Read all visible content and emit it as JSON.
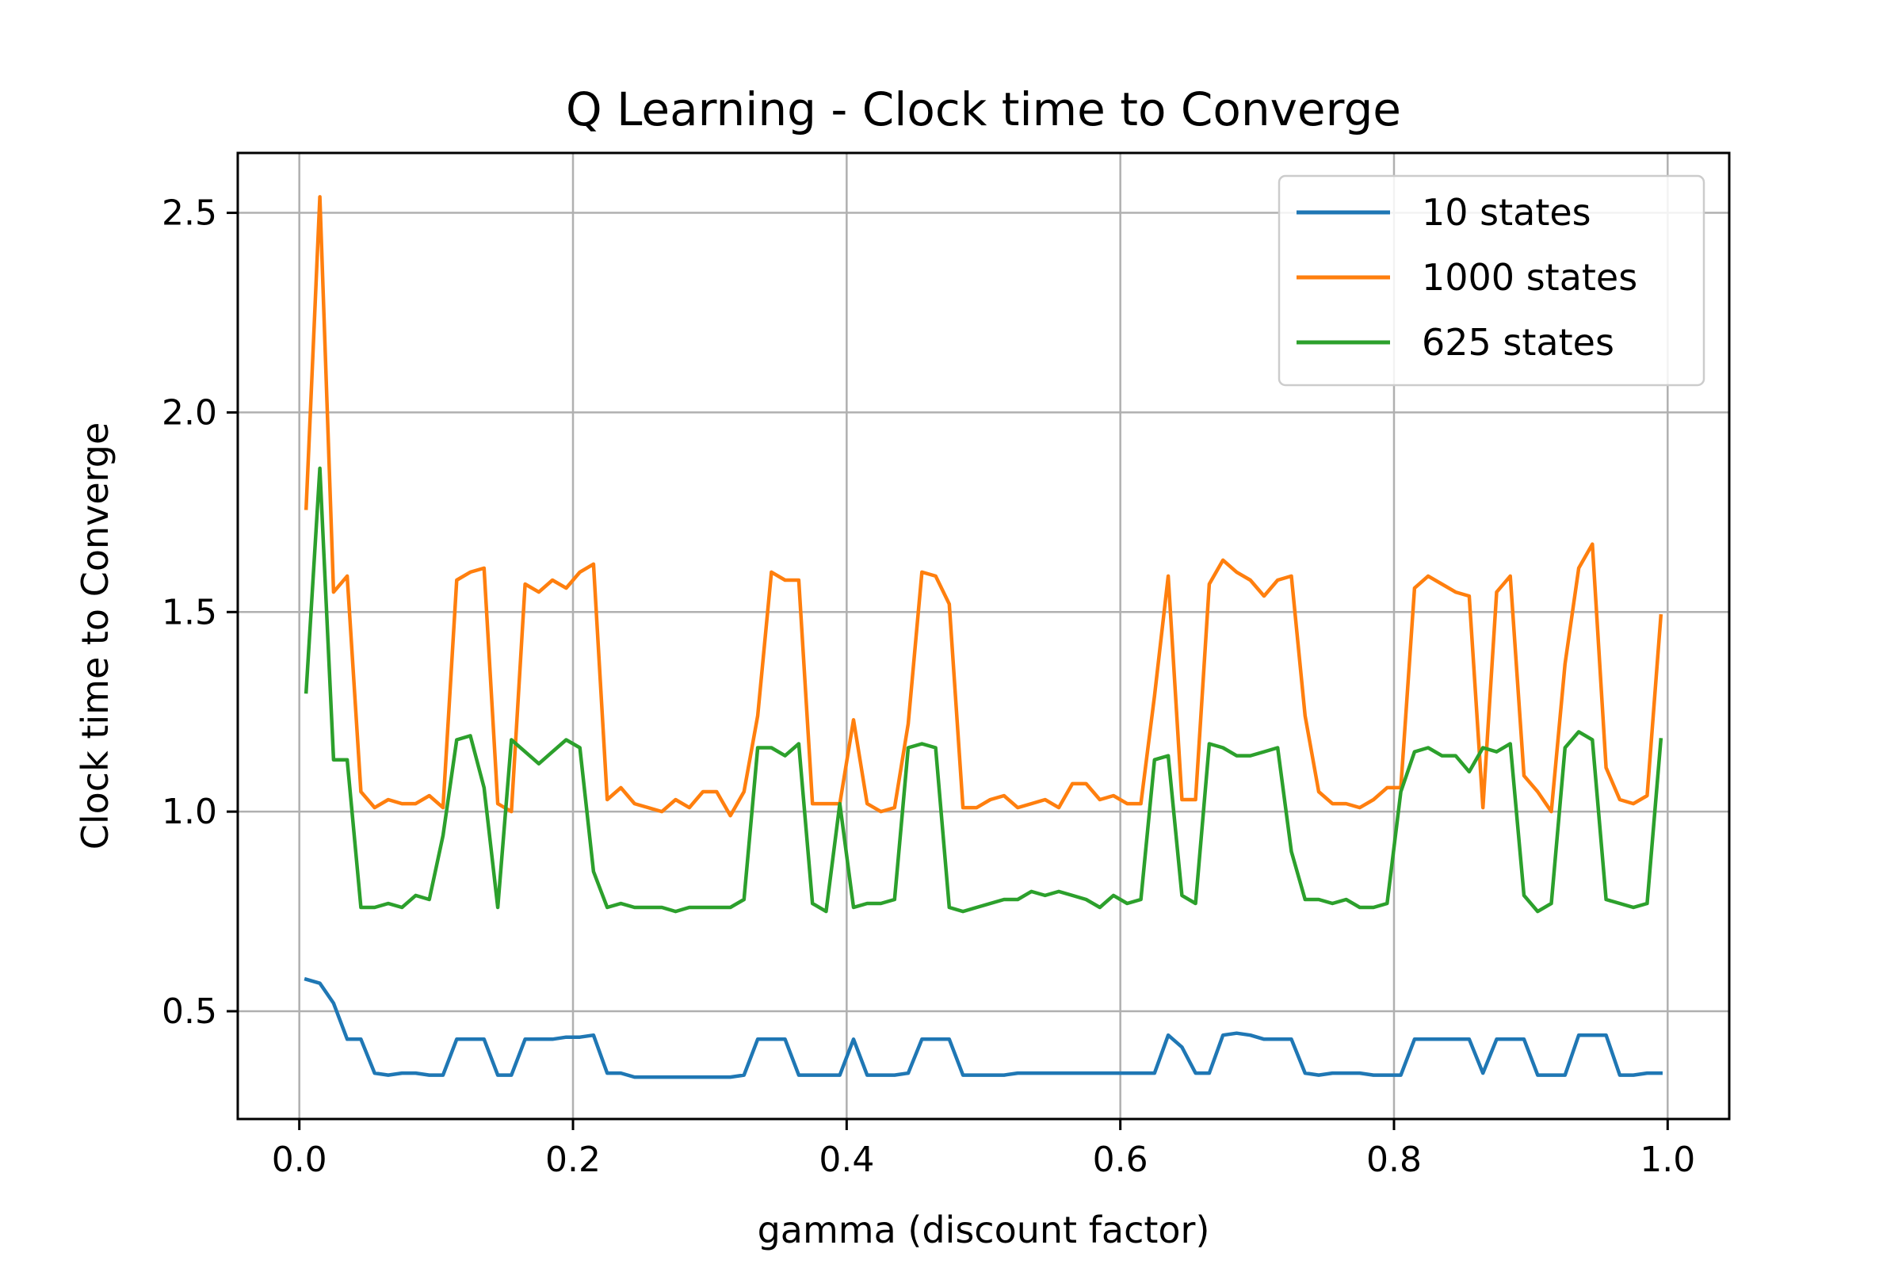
{
  "chart_data": {
    "type": "line",
    "title": "Q Learning - Clock time to Converge",
    "xlabel": "gamma (discount factor)",
    "ylabel": "Clock time to Converge",
    "xlim": [
      -0.045,
      1.045
    ],
    "ylim": [
      0.23,
      2.65
    ],
    "xticks": [
      0.0,
      0.2,
      0.4,
      0.6,
      0.8,
      1.0
    ],
    "xtick_labels": [
      "0.0",
      "0.2",
      "0.4",
      "0.6",
      "0.8",
      "1.0"
    ],
    "yticks": [
      0.5,
      1.0,
      1.5,
      2.0,
      2.5
    ],
    "ytick_labels": [
      "0.5",
      "1.0",
      "1.5",
      "2.0",
      "2.5"
    ],
    "grid": true,
    "legend_position": "top-right",
    "x": [
      0.005,
      0.015,
      0.025,
      0.035,
      0.045,
      0.055,
      0.065,
      0.075,
      0.085,
      0.095,
      0.105,
      0.115,
      0.125,
      0.135,
      0.145,
      0.155,
      0.165,
      0.175,
      0.185,
      0.195,
      0.205,
      0.215,
      0.225,
      0.235,
      0.245,
      0.255,
      0.265,
      0.275,
      0.285,
      0.295,
      0.305,
      0.315,
      0.325,
      0.335,
      0.345,
      0.355,
      0.365,
      0.375,
      0.385,
      0.395,
      0.405,
      0.415,
      0.425,
      0.435,
      0.445,
      0.455,
      0.465,
      0.475,
      0.485,
      0.495,
      0.505,
      0.515,
      0.525,
      0.535,
      0.545,
      0.555,
      0.565,
      0.575,
      0.585,
      0.595,
      0.605,
      0.615,
      0.625,
      0.635,
      0.645,
      0.655,
      0.665,
      0.675,
      0.685,
      0.695,
      0.705,
      0.715,
      0.725,
      0.735,
      0.745,
      0.755,
      0.765,
      0.775,
      0.785,
      0.795,
      0.805,
      0.815,
      0.825,
      0.835,
      0.845,
      0.855,
      0.865,
      0.875,
      0.885,
      0.895,
      0.905,
      0.915,
      0.925,
      0.935,
      0.945,
      0.955,
      0.965,
      0.975,
      0.985,
      0.995
    ],
    "series": [
      {
        "name": "10 states",
        "color": "#1f77b4",
        "values": [
          0.58,
          0.57,
          0.52,
          0.43,
          0.43,
          0.345,
          0.34,
          0.345,
          0.345,
          0.34,
          0.34,
          0.43,
          0.43,
          0.43,
          0.34,
          0.34,
          0.43,
          0.43,
          0.43,
          0.435,
          0.435,
          0.44,
          0.345,
          0.345,
          0.335,
          0.335,
          0.335,
          0.335,
          0.335,
          0.335,
          0.335,
          0.335,
          0.34,
          0.43,
          0.43,
          0.43,
          0.34,
          0.34,
          0.34,
          0.34,
          0.43,
          0.34,
          0.34,
          0.34,
          0.345,
          0.43,
          0.43,
          0.43,
          0.34,
          0.34,
          0.34,
          0.34,
          0.345,
          0.345,
          0.345,
          0.345,
          0.345,
          0.345,
          0.345,
          0.345,
          0.345,
          0.345,
          0.345,
          0.44,
          0.41,
          0.345,
          0.345,
          0.44,
          0.445,
          0.44,
          0.43,
          0.43,
          0.43,
          0.345,
          0.34,
          0.345,
          0.345,
          0.345,
          0.34,
          0.34,
          0.34,
          0.43,
          0.43,
          0.43,
          0.43,
          0.43,
          0.345,
          0.43,
          0.43,
          0.43,
          0.34,
          0.34,
          0.34,
          0.44,
          0.44,
          0.44,
          0.34,
          0.34,
          0.345,
          0.345
        ]
      },
      {
        "name": "1000 states",
        "color": "#ff7f0e",
        "values": [
          1.76,
          2.54,
          1.55,
          1.59,
          1.05,
          1.01,
          1.03,
          1.02,
          1.02,
          1.04,
          1.01,
          1.58,
          1.6,
          1.61,
          1.02,
          1.0,
          1.57,
          1.55,
          1.58,
          1.56,
          1.6,
          1.62,
          1.03,
          1.06,
          1.02,
          1.01,
          1.0,
          1.03,
          1.01,
          1.05,
          1.05,
          0.99,
          1.05,
          1.24,
          1.6,
          1.58,
          1.58,
          1.02,
          1.02,
          1.02,
          1.23,
          1.02,
          1.0,
          1.01,
          1.22,
          1.6,
          1.59,
          1.52,
          1.01,
          1.01,
          1.03,
          1.04,
          1.01,
          1.02,
          1.03,
          1.01,
          1.07,
          1.07,
          1.03,
          1.04,
          1.02,
          1.02,
          1.29,
          1.59,
          1.03,
          1.03,
          1.57,
          1.63,
          1.6,
          1.58,
          1.54,
          1.58,
          1.59,
          1.24,
          1.05,
          1.02,
          1.02,
          1.01,
          1.03,
          1.06,
          1.06,
          1.56,
          1.59,
          1.57,
          1.55,
          1.54,
          1.01,
          1.55,
          1.59,
          1.09,
          1.05,
          1.0,
          1.37,
          1.61,
          1.67,
          1.11,
          1.03,
          1.02,
          1.04,
          1.49
        ]
      },
      {
        "name": "625 states",
        "color": "#2ca02c",
        "values": [
          1.3,
          1.86,
          1.13,
          1.13,
          0.76,
          0.76,
          0.77,
          0.76,
          0.79,
          0.78,
          0.94,
          1.18,
          1.19,
          1.06,
          0.76,
          1.18,
          1.15,
          1.12,
          1.15,
          1.18,
          1.16,
          0.85,
          0.76,
          0.77,
          0.76,
          0.76,
          0.76,
          0.75,
          0.76,
          0.76,
          0.76,
          0.76,
          0.78,
          1.16,
          1.16,
          1.14,
          1.17,
          0.77,
          0.75,
          1.02,
          0.76,
          0.77,
          0.77,
          0.78,
          1.16,
          1.17,
          1.16,
          0.76,
          0.75,
          0.76,
          0.77,
          0.78,
          0.78,
          0.8,
          0.79,
          0.8,
          0.79,
          0.78,
          0.76,
          0.79,
          0.77,
          0.78,
          1.13,
          1.14,
          0.79,
          0.77,
          1.17,
          1.16,
          1.14,
          1.14,
          1.15,
          1.16,
          0.9,
          0.78,
          0.78,
          0.77,
          0.78,
          0.76,
          0.76,
          0.77,
          1.05,
          1.15,
          1.16,
          1.14,
          1.14,
          1.1,
          1.16,
          1.15,
          1.17,
          0.79,
          0.75,
          0.77,
          1.16,
          1.2,
          1.18,
          0.78,
          0.77,
          0.76,
          0.77,
          1.18
        ]
      }
    ]
  }
}
